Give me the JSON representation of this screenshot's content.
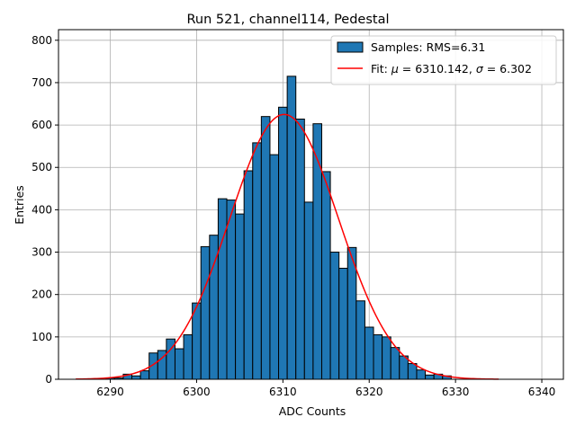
{
  "chart_data": {
    "type": "bar",
    "title": "Run 521, channel114, Pedestal",
    "xlabel": "ADC Counts",
    "ylabel": "Entries",
    "xlim": [
      6284,
      6342.5
    ],
    "ylim": [
      0,
      825
    ],
    "xticks": [
      6290,
      6300,
      6310,
      6320,
      6330,
      6340
    ],
    "yticks": [
      0,
      100,
      200,
      300,
      400,
      500,
      600,
      700,
      800
    ],
    "grid": true,
    "legend_position": "top-right",
    "bin_width": 1,
    "bins": [
      {
        "x": 6290,
        "y": 3
      },
      {
        "x": 6291,
        "y": 3
      },
      {
        "x": 6292,
        "y": 12
      },
      {
        "x": 6293,
        "y": 8
      },
      {
        "x": 6294,
        "y": 20
      },
      {
        "x": 6295,
        "y": 62
      },
      {
        "x": 6296,
        "y": 68
      },
      {
        "x": 6297,
        "y": 95
      },
      {
        "x": 6298,
        "y": 72
      },
      {
        "x": 6299,
        "y": 105
      },
      {
        "x": 6300,
        "y": 180
      },
      {
        "x": 6301,
        "y": 313
      },
      {
        "x": 6302,
        "y": 340
      },
      {
        "x": 6303,
        "y": 426
      },
      {
        "x": 6304,
        "y": 423
      },
      {
        "x": 6305,
        "y": 390
      },
      {
        "x": 6306,
        "y": 492
      },
      {
        "x": 6307,
        "y": 558
      },
      {
        "x": 6308,
        "y": 620
      },
      {
        "x": 6309,
        "y": 530
      },
      {
        "x": 6310,
        "y": 642
      },
      {
        "x": 6311,
        "y": 715
      },
      {
        "x": 6312,
        "y": 614
      },
      {
        "x": 6313,
        "y": 418
      },
      {
        "x": 6314,
        "y": 603
      },
      {
        "x": 6315,
        "y": 490
      },
      {
        "x": 6316,
        "y": 300
      },
      {
        "x": 6317,
        "y": 262
      },
      {
        "x": 6318,
        "y": 311
      },
      {
        "x": 6319,
        "y": 185
      },
      {
        "x": 6320,
        "y": 123
      },
      {
        "x": 6321,
        "y": 105
      },
      {
        "x": 6322,
        "y": 100
      },
      {
        "x": 6323,
        "y": 75
      },
      {
        "x": 6324,
        "y": 55
      },
      {
        "x": 6325,
        "y": 37
      },
      {
        "x": 6326,
        "y": 22
      },
      {
        "x": 6327,
        "y": 10
      },
      {
        "x": 6328,
        "y": 12
      },
      {
        "x": 6329,
        "y": 8
      }
    ],
    "fit": {
      "mu": 6310.142,
      "sigma": 6.302,
      "amplitude": 625,
      "x_range": [
        6286,
        6335
      ]
    },
    "series": [
      {
        "name": "Samples: RMS=6.31",
        "type": "bar",
        "color": "#1f77b4",
        "edge_color": "#000000"
      },
      {
        "name": "Fit: μ = 6310.142, σ = 6.302",
        "type": "line",
        "color": "#ff0000"
      }
    ]
  },
  "legend": {
    "samples_label": "Samples: RMS=6.31",
    "fit_prefix": "Fit: ",
    "mu_symbol": "μ",
    "fit_mid": " = 6310.142, ",
    "sigma_symbol": "σ",
    "fit_suffix": " = 6.302"
  }
}
